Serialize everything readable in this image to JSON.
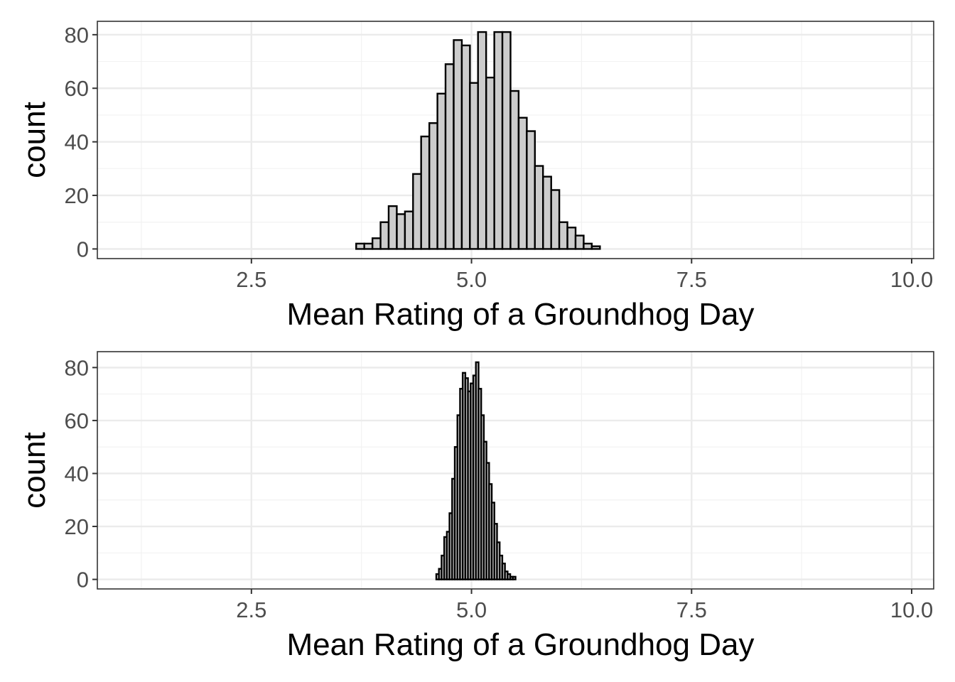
{
  "chart_data": [
    {
      "type": "bar",
      "subtype": "histogram",
      "xlabel": "Mean Rating of a Groundhog Day",
      "ylabel": "count",
      "xlim": [
        0.75,
        10.25
      ],
      "ylim": [
        -3.6,
        85
      ],
      "x_ticks": [
        2.5,
        5.0,
        7.5,
        10.0
      ],
      "x_tick_labels": [
        "2.5",
        "5.0",
        "7.5",
        "10.0"
      ],
      "y_ticks": [
        0,
        20,
        40,
        60,
        80
      ],
      "y_tick_labels": [
        "0",
        "20",
        "40",
        "60",
        "80"
      ],
      "grid": true,
      "bar_fill": "#cccccc",
      "bar_stroke": "#000000",
      "bin_width": 0.0923,
      "bin_starts": [
        3.69,
        3.782,
        3.875,
        3.967,
        4.059,
        4.152,
        4.244,
        4.336,
        4.428,
        4.521,
        4.613,
        4.705,
        4.798,
        4.89,
        4.982,
        5.074,
        5.167,
        5.259,
        5.351,
        5.443,
        5.536,
        5.628,
        5.72,
        5.813,
        5.905,
        5.997,
        6.09,
        6.182,
        6.274,
        6.367
      ],
      "counts": [
        2,
        2,
        4,
        10,
        16,
        13,
        14,
        28,
        42,
        47,
        58,
        69,
        78,
        76,
        62,
        81,
        64,
        81,
        81,
        59,
        49,
        44,
        31,
        27,
        22,
        10,
        8,
        5,
        2,
        1
      ]
    },
    {
      "type": "bar",
      "subtype": "histogram",
      "xlabel": "Mean Rating of a Groundhog Day",
      "ylabel": "count",
      "xlim": [
        0.75,
        10.25
      ],
      "ylim": [
        -3.6,
        86
      ],
      "x_ticks": [
        2.5,
        5.0,
        7.5,
        10.0
      ],
      "x_tick_labels": [
        "2.5",
        "5.0",
        "7.5",
        "10.0"
      ],
      "y_ticks": [
        0,
        20,
        40,
        60,
        80
      ],
      "y_tick_labels": [
        "0",
        "20",
        "40",
        "60",
        "80"
      ],
      "grid": true,
      "bar_fill": "#cccccc",
      "bar_stroke": "#000000",
      "bin_width": 0.03,
      "bin_starts": [
        4.6,
        4.63,
        4.66,
        4.69,
        4.72,
        4.75,
        4.78,
        4.81,
        4.84,
        4.87,
        4.9,
        4.93,
        4.96,
        4.99,
        5.02,
        5.05,
        5.08,
        5.11,
        5.14,
        5.17,
        5.2,
        5.23,
        5.26,
        5.29,
        5.32,
        5.35,
        5.38,
        5.41,
        5.44,
        5.47
      ],
      "counts": [
        2,
        4,
        9,
        16,
        18,
        25,
        38,
        50,
        62,
        72,
        78,
        76,
        71,
        74,
        77,
        82,
        72,
        62,
        52,
        44,
        36,
        29,
        21,
        14,
        9,
        6,
        3,
        2,
        1,
        1
      ]
    }
  ]
}
